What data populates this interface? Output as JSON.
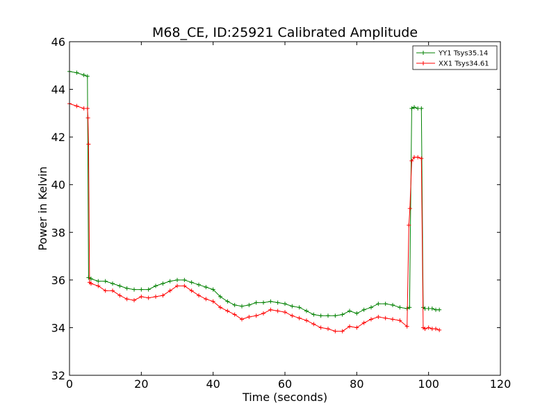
{
  "chart_data": {
    "type": "line",
    "title": "M68_CE, ID:25921 Calibrated Amplitude",
    "xlabel": "Time (seconds)",
    "ylabel": "Power in Kelvin",
    "xlim": [
      0,
      120
    ],
    "ylim": [
      32,
      46
    ],
    "xticks": [
      "0",
      "20",
      "40",
      "60",
      "80",
      "100",
      "120"
    ],
    "yticks": [
      "32",
      "34",
      "36",
      "38",
      "40",
      "42",
      "44",
      "46"
    ],
    "grid": false,
    "legend": "top-right",
    "marker": "plus",
    "series": [
      {
        "name": "YY1 Tsys35.14",
        "color": "#008000",
        "x": [
          0,
          2,
          4,
          5,
          5.3,
          6,
          8,
          10,
          12,
          14,
          16,
          18,
          20,
          22,
          24,
          26,
          28,
          30,
          32,
          34,
          36,
          38,
          40,
          42,
          44,
          46,
          48,
          50,
          52,
          54,
          56,
          58,
          60,
          62,
          64,
          66,
          68,
          70,
          72,
          74,
          76,
          78,
          80,
          82,
          84,
          86,
          88,
          90,
          92,
          94,
          94.7,
          95.3,
          96,
          97,
          98,
          98.5,
          99,
          100,
          101,
          102,
          103
        ],
        "y": [
          44.75,
          44.7,
          44.6,
          44.55,
          36.1,
          36.05,
          35.95,
          35.95,
          35.85,
          35.75,
          35.65,
          35.6,
          35.6,
          35.6,
          35.75,
          35.85,
          35.95,
          36.0,
          36.0,
          35.9,
          35.8,
          35.7,
          35.6,
          35.3,
          35.1,
          34.95,
          34.9,
          34.95,
          35.05,
          35.05,
          35.1,
          35.05,
          35.0,
          34.9,
          34.85,
          34.7,
          34.55,
          34.5,
          34.5,
          34.5,
          34.55,
          34.7,
          34.6,
          34.75,
          34.85,
          35.0,
          35.0,
          34.95,
          34.85,
          34.8,
          34.85,
          43.2,
          43.25,
          43.2,
          43.2,
          34.85,
          34.8,
          34.8,
          34.8,
          34.75,
          34.75
        ]
      },
      {
        "name": "XX1 Tsys34.61",
        "color": "#ff0000",
        "x": [
          0,
          2,
          4,
          5,
          5.15,
          5.3,
          5.6,
          6,
          8,
          10,
          12,
          14,
          16,
          18,
          20,
          22,
          24,
          26,
          28,
          30,
          32,
          34,
          36,
          38,
          40,
          42,
          44,
          46,
          48,
          50,
          52,
          54,
          56,
          58,
          60,
          62,
          64,
          66,
          68,
          70,
          72,
          74,
          76,
          78,
          80,
          82,
          84,
          86,
          88,
          90,
          92,
          94,
          94.5,
          94.8,
          95.3,
          96,
          97,
          98,
          98.5,
          99,
          100,
          101,
          102,
          103
        ],
        "y": [
          43.4,
          43.3,
          43.2,
          43.2,
          42.8,
          41.7,
          35.9,
          35.85,
          35.75,
          35.55,
          35.55,
          35.35,
          35.2,
          35.15,
          35.3,
          35.25,
          35.3,
          35.35,
          35.55,
          35.75,
          35.75,
          35.55,
          35.35,
          35.2,
          35.1,
          34.85,
          34.7,
          34.55,
          34.35,
          34.45,
          34.5,
          34.6,
          34.75,
          34.7,
          34.65,
          34.5,
          34.4,
          34.3,
          34.15,
          34.0,
          33.95,
          33.85,
          33.85,
          34.05,
          34.0,
          34.2,
          34.35,
          34.45,
          34.4,
          34.35,
          34.3,
          34.05,
          38.3,
          39.0,
          41.0,
          41.15,
          41.15,
          41.1,
          34.0,
          33.95,
          34.0,
          33.95,
          33.95,
          33.9
        ]
      }
    ]
  }
}
